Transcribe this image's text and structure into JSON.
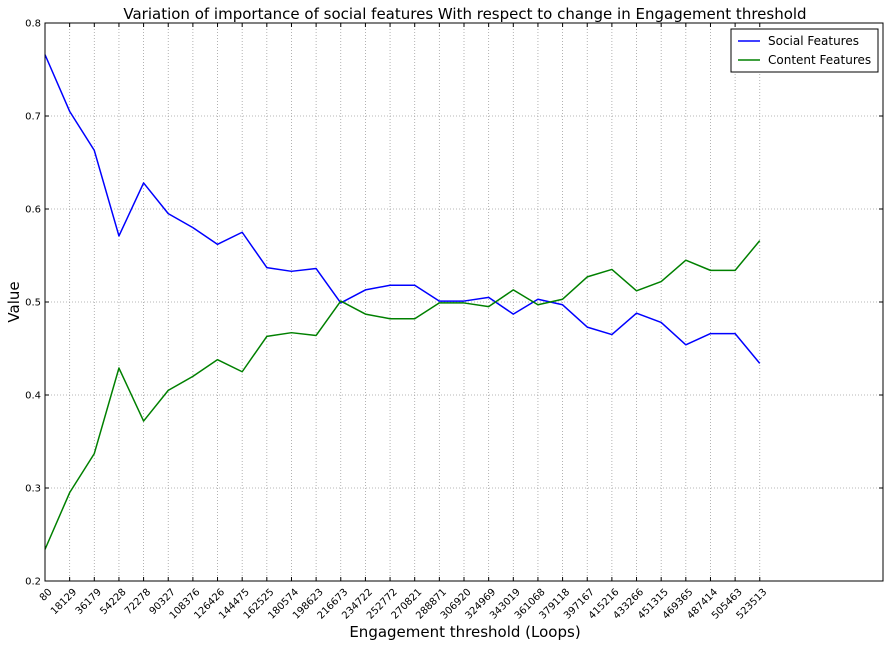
{
  "chart_data": {
    "type": "line",
    "title": "Variation of importance of social features With respect to change in Engagement threshold",
    "xlabel": "Engagement threshold (Loops)",
    "ylabel": "Value",
    "categories": [
      "80",
      "18129",
      "36179",
      "54228",
      "72278",
      "90327",
      "108376",
      "126426",
      "144475",
      "162525",
      "180574",
      "198623",
      "216673",
      "234722",
      "252772",
      "270821",
      "288871",
      "306920",
      "324969",
      "343019",
      "361068",
      "379118",
      "397167",
      "415216",
      "433266",
      "451315",
      "469365",
      "487414",
      "505463",
      "523513"
    ],
    "x_slots": 34,
    "ylim": [
      0.2,
      0.8
    ],
    "yticks": [
      "0.2",
      "0.3",
      "0.4",
      "0.5",
      "0.6",
      "0.7",
      "0.8"
    ],
    "grid": true,
    "legend_position": "top-right",
    "series": [
      {
        "name": "Social Features",
        "color": "#0000ff",
        "values": [
          0.766,
          0.705,
          0.663,
          0.571,
          0.628,
          0.595,
          0.58,
          0.562,
          0.575,
          0.537,
          0.533,
          0.536,
          0.499,
          0.513,
          0.518,
          0.518,
          0.501,
          0.501,
          0.505,
          0.487,
          0.503,
          0.497,
          0.473,
          0.465,
          0.488,
          0.478,
          0.454,
          0.466,
          0.466,
          0.434
        ]
      },
      {
        "name": "Content Features",
        "color": "#008000",
        "values": [
          0.234,
          0.295,
          0.337,
          0.429,
          0.372,
          0.405,
          0.42,
          0.438,
          0.425,
          0.463,
          0.467,
          0.464,
          0.501,
          0.487,
          0.482,
          0.482,
          0.499,
          0.499,
          0.495,
          0.513,
          0.497,
          0.503,
          0.527,
          0.535,
          0.512,
          0.522,
          0.545,
          0.534,
          0.534,
          0.566
        ]
      }
    ]
  }
}
